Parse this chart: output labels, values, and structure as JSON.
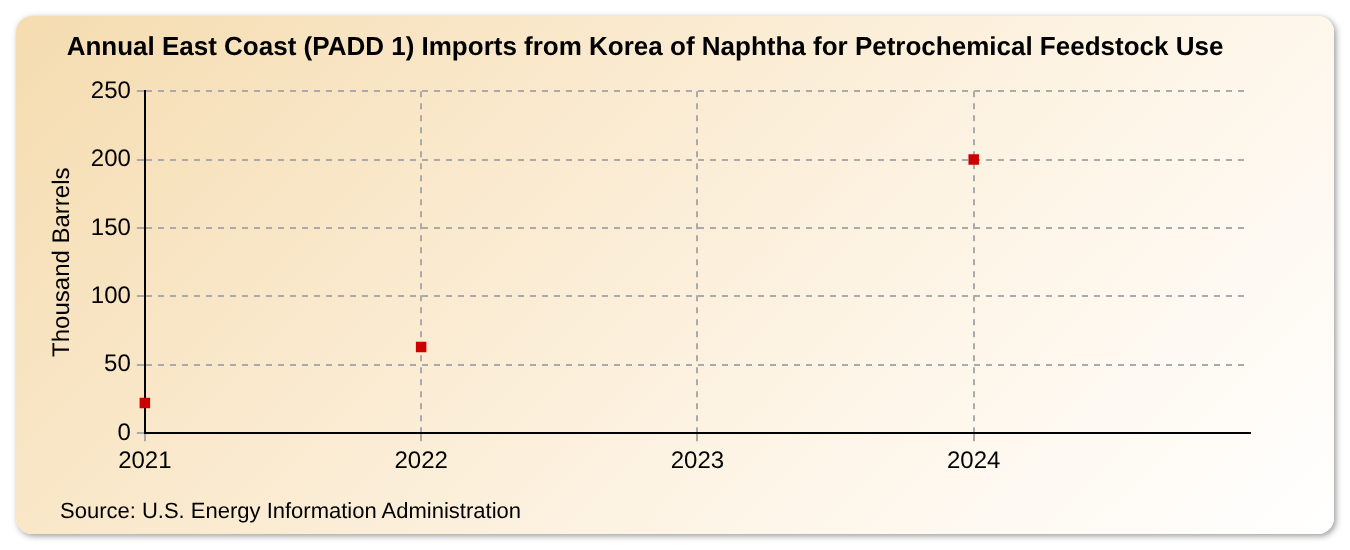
{
  "chart_data": {
    "type": "scatter",
    "title": "Annual East Coast (PADD 1) Imports from Korea of Naphtha for Petrochemical Feedstock Use",
    "ylabel": "Thousand Barrels",
    "x": [
      2021,
      2022,
      2024
    ],
    "series": [
      {
        "color": "#cc0000",
        "values": [
          22,
          63,
          200
        ]
      }
    ],
    "xlim": [
      2021,
      2025
    ],
    "xticks": [
      2021,
      2022,
      2023,
      2024
    ],
    "ylim": [
      0,
      250
    ],
    "yticks": [
      0,
      50,
      100,
      150,
      200,
      250
    ],
    "grid": true,
    "marker": "square",
    "legend": false,
    "annotations": [
      "Source: U.S. Energy Information Administration"
    ]
  }
}
